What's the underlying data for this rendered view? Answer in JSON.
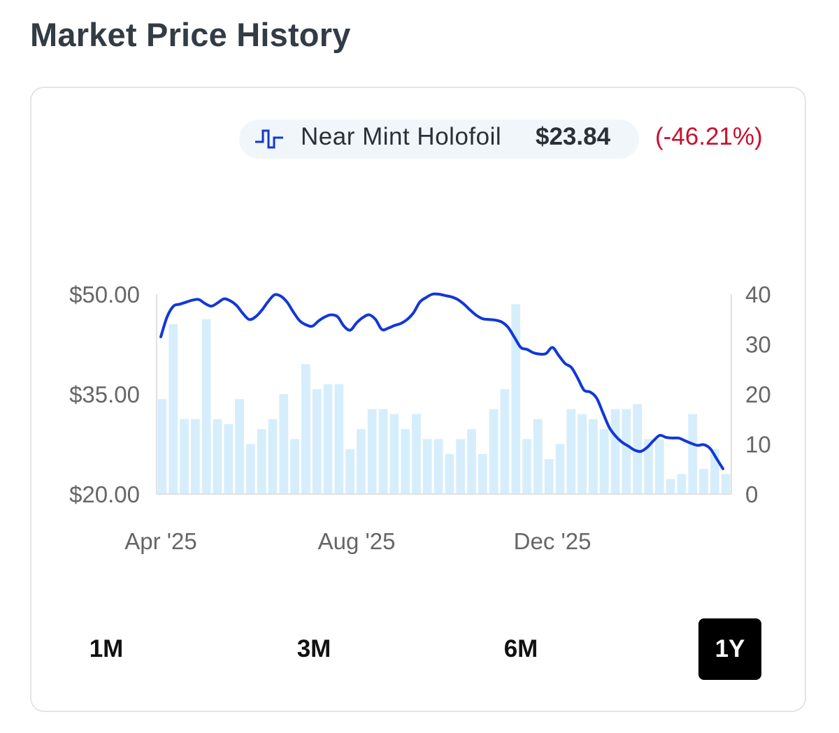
{
  "title": "Market Price History",
  "legend": {
    "label": "Near Mint Holofoil",
    "price": "$23.84",
    "change": "(-46.21%)",
    "icon": "step-line-icon"
  },
  "colors": {
    "line": "#1238d6",
    "bar": "#d6eefc",
    "change_negative": "#c8102e",
    "axis_text": "#666666",
    "grid": "#e0e0e0"
  },
  "ranges": [
    {
      "label": "1M",
      "active": false
    },
    {
      "label": "3M",
      "active": false
    },
    {
      "label": "6M",
      "active": false
    },
    {
      "label": "1Y",
      "active": true
    }
  ],
  "chart_data": {
    "type": "line",
    "title": "",
    "series": [
      {
        "name": "Near Mint Holofoil",
        "axis": "left",
        "type": "line",
        "x": [
          0,
          1,
          2,
          3,
          4,
          5,
          6,
          7,
          8,
          9,
          10,
          11,
          12,
          13,
          14,
          15,
          16,
          17,
          18,
          19,
          20,
          21,
          22,
          23,
          24,
          25,
          26,
          27,
          28,
          29,
          30,
          31,
          32,
          33,
          34,
          35,
          36,
          37,
          38,
          39,
          40,
          41,
          42,
          43,
          44,
          45,
          46,
          47,
          48,
          49,
          50,
          51,
          52,
          53,
          54,
          55,
          56,
          57,
          58,
          59,
          60,
          61,
          62,
          63,
          64,
          65,
          66,
          67,
          68,
          69,
          70,
          71,
          72,
          73,
          74,
          75,
          76,
          77,
          78,
          79,
          80,
          81,
          82,
          83,
          84,
          85,
          86,
          87,
          88,
          89
        ],
        "values": [
          43.6,
          46.6,
          48.2,
          48.5,
          48.8,
          49.1,
          49.2,
          48.6,
          48.2,
          48.7,
          49.3,
          49.0,
          48.3,
          47.1,
          46.2,
          46.6,
          47.6,
          48.9,
          49.9,
          49.7,
          48.8,
          47.3,
          46.0,
          45.4,
          45.2,
          46.0,
          46.6,
          46.9,
          46.6,
          45.2,
          44.6,
          45.7,
          46.5,
          46.9,
          46.2,
          44.7,
          44.9,
          45.3,
          45.6,
          46.2,
          47.2,
          48.8,
          49.5,
          50.0,
          50.0,
          49.8,
          49.6,
          49.2,
          48.5,
          47.6,
          46.8,
          46.3,
          46.2,
          46.1,
          45.8,
          45.0,
          43.5,
          42.0,
          41.7,
          41.2,
          41.0,
          41.1,
          42.0,
          40.8,
          39.6,
          39.0,
          37.4,
          35.6,
          35.3,
          34.4,
          32.2,
          30.0,
          28.7,
          27.8,
          27.2,
          26.6,
          26.4,
          27.0,
          28.0,
          28.8,
          28.5,
          28.4,
          28.4,
          28.0,
          27.6,
          27.3,
          27.4,
          26.8,
          25.3,
          23.8
        ]
      },
      {
        "name": "Volume",
        "axis": "right",
        "type": "bar",
        "values": [
          19,
          34,
          15,
          15,
          35,
          15,
          14,
          19,
          10,
          13,
          15,
          20,
          11,
          26,
          21,
          22,
          22,
          9,
          13,
          17,
          17,
          16,
          13,
          16,
          11,
          11,
          8,
          11,
          13,
          8,
          17,
          21,
          38,
          11,
          15,
          7,
          10,
          17,
          16,
          15,
          13,
          17,
          17,
          18,
          11,
          11,
          3,
          4,
          16,
          5,
          9,
          4
        ]
      }
    ],
    "xlabel": "",
    "ylabel": "",
    "x_tick_labels": [
      "Apr '25",
      "Aug '25",
      "Dec '25"
    ],
    "x_tick_positions": [
      0,
      31,
      62
    ],
    "xlim": [
      0,
      89
    ],
    "ylim": [
      20,
      50
    ],
    "y_tick_labels": [
      "$50.00",
      "$35.00",
      "$20.00"
    ],
    "y_tick_values": [
      50,
      35,
      20
    ],
    "y2lim": [
      0,
      40
    ],
    "y2_tick_labels": [
      "40",
      "30",
      "20",
      "10",
      "0"
    ],
    "y2_tick_values": [
      40,
      30,
      20,
      10,
      0
    ],
    "grid": false,
    "legend": "top-right"
  }
}
